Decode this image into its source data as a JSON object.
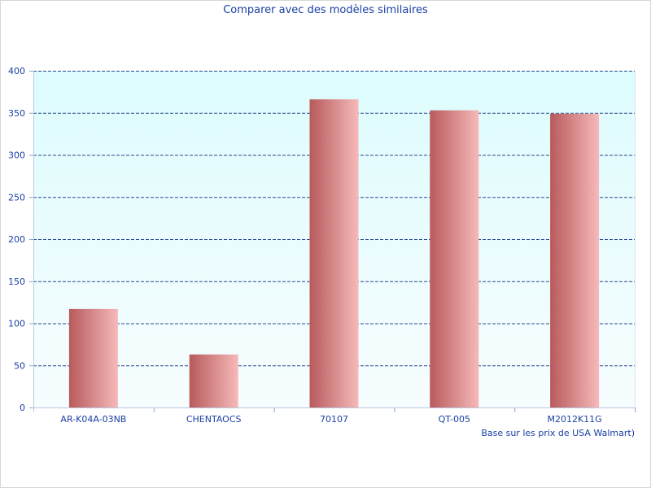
{
  "colors": {
    "text": "#1a3fa3",
    "grid": "#2b4a8a",
    "plot_bg_top": "#ddfcfd",
    "plot_bg_bottom": "#f7fdfe",
    "bar_dark": "#b85a5c",
    "bar_light": "#f6b9b9"
  },
  "chart_data": {
    "type": "bar",
    "title": "Comparer avec des modèles similaires",
    "xlabel": "Base sur les prix de USA Walmart)",
    "ylabel": "",
    "categories": [
      "AR-K04A-03NB",
      "CHENTAOCS",
      "70107",
      "QT-005",
      "M2012K11G"
    ],
    "values": [
      117,
      63,
      366,
      353,
      349
    ],
    "ylim": [
      0,
      400
    ],
    "yticks": [
      0,
      50,
      100,
      150,
      200,
      250,
      300,
      350,
      400
    ],
    "grid": true,
    "legend": "none"
  }
}
